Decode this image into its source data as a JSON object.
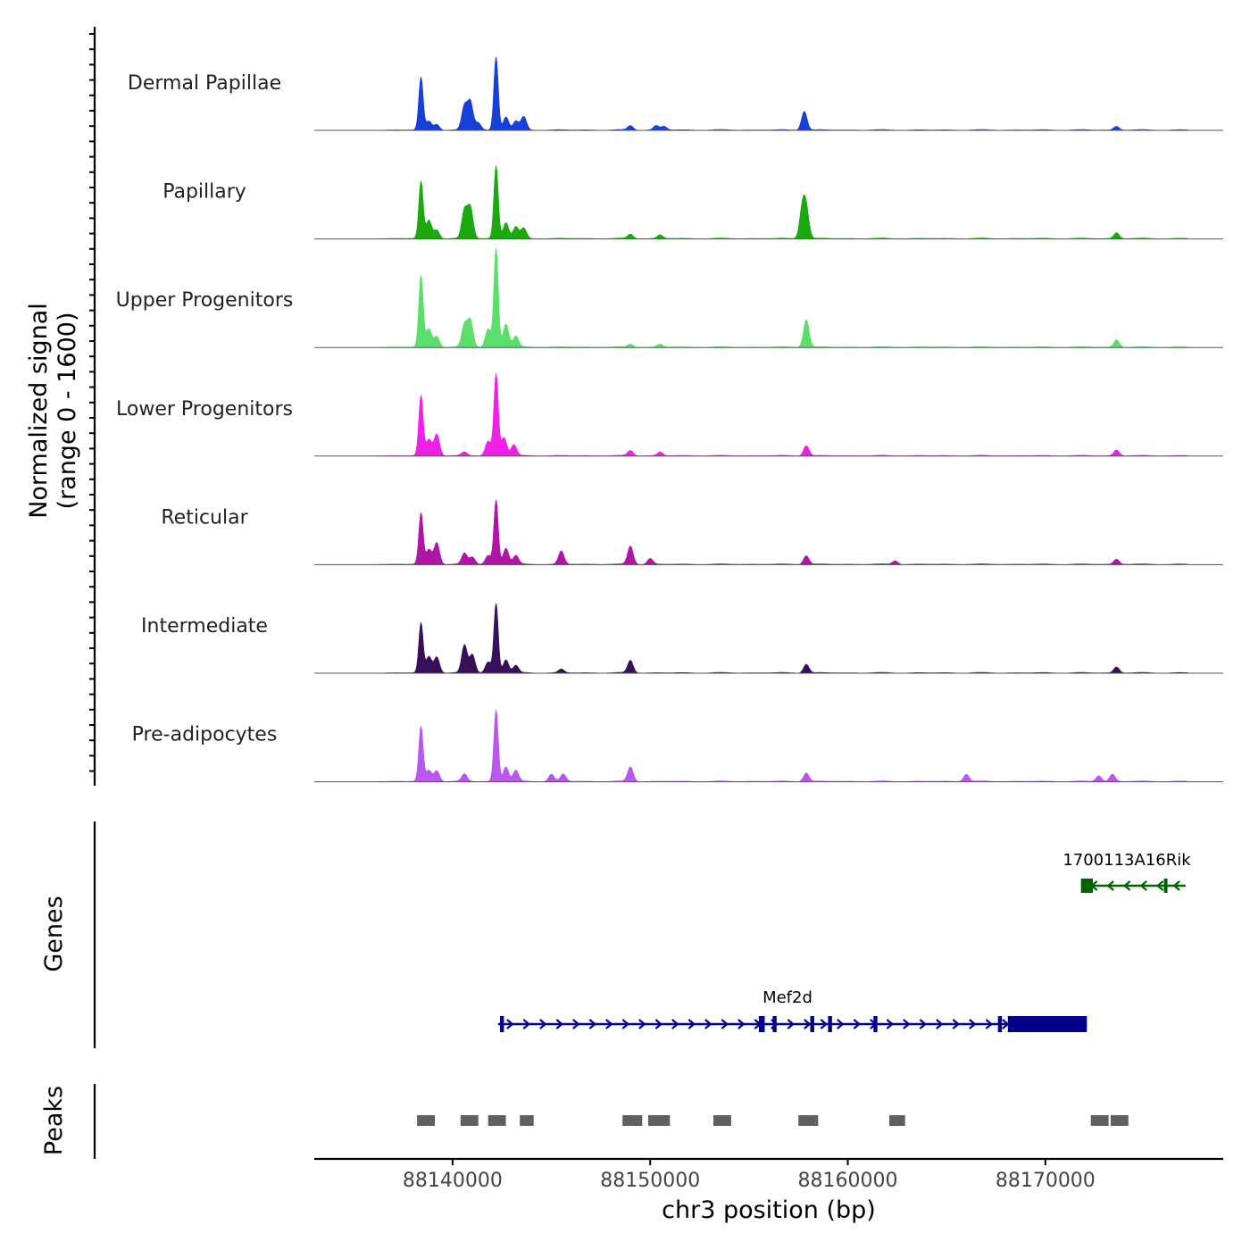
{
  "chart_data": {
    "type": "area",
    "title": "",
    "chromosome": "chr3",
    "xlabel": "chr3 position (bp)",
    "ylabel_line1": "Normalized signal",
    "ylabel_line2": "(range 0 - 1600)",
    "xlim": [
      88133000,
      88179000
    ],
    "ylim": [
      0,
      1600
    ],
    "x_ticks": [
      88140000,
      88150000,
      88160000,
      88170000
    ],
    "x_tick_labels": [
      "88140000",
      "88150000",
      "88160000",
      "88170000"
    ],
    "series": [
      {
        "name": "Dermal Papillae",
        "color": "#1640d8",
        "peaks": [
          [
            88138400,
            0.72
          ],
          [
            88138800,
            0.12
          ],
          [
            88139200,
            0.08
          ],
          [
            88140600,
            0.32
          ],
          [
            88140900,
            0.38
          ],
          [
            88141300,
            0.1
          ],
          [
            88142200,
            1.0
          ],
          [
            88142700,
            0.18
          ],
          [
            88143200,
            0.12
          ],
          [
            88143600,
            0.18
          ],
          [
            88149000,
            0.06
          ],
          [
            88150300,
            0.06
          ],
          [
            88150700,
            0.05
          ],
          [
            88157800,
            0.26
          ],
          [
            88173600,
            0.05
          ]
        ]
      },
      {
        "name": "Papillary",
        "color": "#1aaa10",
        "peaks": [
          [
            88138400,
            0.78
          ],
          [
            88138800,
            0.25
          ],
          [
            88139200,
            0.12
          ],
          [
            88140600,
            0.38
          ],
          [
            88140900,
            0.42
          ],
          [
            88142200,
            1.0
          ],
          [
            88142700,
            0.22
          ],
          [
            88143200,
            0.16
          ],
          [
            88143600,
            0.14
          ],
          [
            88149000,
            0.06
          ],
          [
            88150500,
            0.05
          ],
          [
            88157700,
            0.4
          ],
          [
            88157900,
            0.38
          ],
          [
            88173600,
            0.08
          ]
        ]
      },
      {
        "name": "Upper Progenitors",
        "color": "#5cde6c",
        "peaks": [
          [
            88138400,
            0.98
          ],
          [
            88138800,
            0.25
          ],
          [
            88139200,
            0.15
          ],
          [
            88140600,
            0.3
          ],
          [
            88140900,
            0.36
          ],
          [
            88141800,
            0.25
          ],
          [
            88142200,
            1.35
          ],
          [
            88142700,
            0.32
          ],
          [
            88143200,
            0.15
          ],
          [
            88149000,
            0.04
          ],
          [
            88150500,
            0.04
          ],
          [
            88157900,
            0.38
          ],
          [
            88173600,
            0.1
          ]
        ]
      },
      {
        "name": "Lower Progenitors",
        "color": "#f020e8",
        "peaks": [
          [
            88138400,
            0.82
          ],
          [
            88138800,
            0.22
          ],
          [
            88139200,
            0.3
          ],
          [
            88140600,
            0.05
          ],
          [
            88141800,
            0.2
          ],
          [
            88142200,
            1.12
          ],
          [
            88142600,
            0.25
          ],
          [
            88143100,
            0.15
          ],
          [
            88149000,
            0.07
          ],
          [
            88150500,
            0.05
          ],
          [
            88157900,
            0.14
          ],
          [
            88173600,
            0.08
          ]
        ]
      },
      {
        "name": "Reticular",
        "color": "#b015a8",
        "peaks": [
          [
            88138400,
            0.7
          ],
          [
            88138800,
            0.2
          ],
          [
            88139200,
            0.3
          ],
          [
            88140600,
            0.15
          ],
          [
            88141000,
            0.1
          ],
          [
            88141800,
            0.12
          ],
          [
            88142200,
            0.88
          ],
          [
            88142700,
            0.22
          ],
          [
            88143200,
            0.12
          ],
          [
            88145500,
            0.18
          ],
          [
            88149000,
            0.25
          ],
          [
            88150000,
            0.08
          ],
          [
            88157900,
            0.12
          ],
          [
            88162400,
            0.05
          ],
          [
            88173600,
            0.07
          ]
        ]
      },
      {
        "name": "Intermediate",
        "color": "#38105a",
        "peaks": [
          [
            88138400,
            0.68
          ],
          [
            88138800,
            0.22
          ],
          [
            88139200,
            0.22
          ],
          [
            88140600,
            0.38
          ],
          [
            88141000,
            0.25
          ],
          [
            88141800,
            0.15
          ],
          [
            88142200,
            0.95
          ],
          [
            88142700,
            0.18
          ],
          [
            88143200,
            0.1
          ],
          [
            88145500,
            0.05
          ],
          [
            88149000,
            0.17
          ],
          [
            88157900,
            0.12
          ],
          [
            88173600,
            0.08
          ]
        ]
      },
      {
        "name": "Pre-adipocytes",
        "color": "#b858f0",
        "peaks": [
          [
            88138400,
            0.75
          ],
          [
            88138800,
            0.15
          ],
          [
            88139200,
            0.15
          ],
          [
            88140600,
            0.1
          ],
          [
            88142200,
            0.98
          ],
          [
            88142700,
            0.2
          ],
          [
            88143200,
            0.15
          ],
          [
            88145000,
            0.1
          ],
          [
            88145600,
            0.1
          ],
          [
            88149000,
            0.2
          ],
          [
            88157900,
            0.12
          ],
          [
            88166000,
            0.1
          ],
          [
            88172700,
            0.08
          ],
          [
            88173400,
            0.1
          ]
        ]
      }
    ],
    "genes": [
      {
        "name": "1700113A16Rik",
        "strand": "-",
        "color": "#006400",
        "start": 88171800,
        "end": 88177100,
        "exons": [
          [
            88171800,
            88172400
          ],
          [
            88176000,
            88176100
          ]
        ]
      },
      {
        "name": "Mef2d",
        "strand": "+",
        "color": "#00008b",
        "start": 88142300,
        "end": 88172100,
        "exons": [
          [
            88142400,
            88142600
          ],
          [
            88155500,
            88155800
          ],
          [
            88156200,
            88156400
          ],
          [
            88158100,
            88158300
          ],
          [
            88159000,
            88159200
          ],
          [
            88161300,
            88161500
          ],
          [
            88167600,
            88167800
          ],
          [
            88168100,
            88172100
          ]
        ]
      }
    ],
    "peaks_track": [
      [
        88138200,
        88139100
      ],
      [
        88140400,
        88141300
      ],
      [
        88141800,
        88142700
      ],
      [
        88143400,
        88144100
      ],
      [
        88148600,
        88149600
      ],
      [
        88149900,
        88151000
      ],
      [
        88153200,
        88154100
      ],
      [
        88157500,
        88158500
      ],
      [
        88162100,
        88162900
      ],
      [
        88172300,
        88173200
      ],
      [
        88173300,
        88174200
      ]
    ],
    "track_labels": {
      "genes": "Genes",
      "peaks": "Peaks"
    }
  }
}
